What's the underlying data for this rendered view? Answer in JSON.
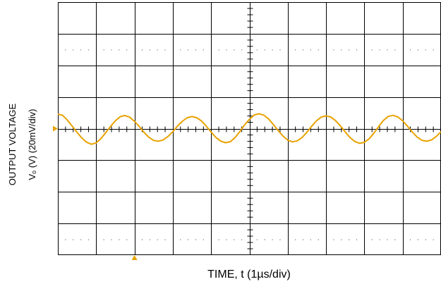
{
  "chart_data": {
    "type": "line",
    "xlabel": "TIME, t (1µs/div)",
    "ylabel_line1": "OUTPUT VOLTAGE",
    "ylabel_line2": "Vₒ (V) (20mV/div)",
    "x_divisions": 10,
    "y_divisions": 8,
    "x_unit_per_div": "1µs",
    "y_unit_per_div": "20mV",
    "xlim": [
      0,
      10
    ],
    "ylim": [
      -80,
      80
    ],
    "grid": true,
    "series": [
      {
        "color": "#E8A200",
        "x": [
          0.0,
          0.125,
          0.25,
          0.375,
          0.5,
          0.625,
          0.75,
          0.875,
          1.0,
          1.125,
          1.25,
          1.375,
          1.5,
          1.625,
          1.75,
          1.875,
          2.0,
          2.125,
          2.25,
          2.375,
          2.5,
          2.625,
          2.75,
          2.875,
          3.0,
          3.125,
          3.25,
          3.375,
          3.5,
          3.625,
          3.75,
          3.875,
          4.0,
          4.125,
          4.25,
          4.375,
          4.5,
          4.625,
          4.75,
          4.875,
          5.0,
          5.125,
          5.25,
          5.375,
          5.5,
          5.625,
          5.75,
          5.875,
          6.0,
          6.125,
          6.25,
          6.375,
          6.5,
          6.625,
          6.75,
          6.875,
          7.0,
          7.125,
          7.25,
          7.375,
          7.5,
          7.625,
          7.75,
          7.875,
          8.0,
          8.125,
          8.25,
          8.375,
          8.5,
          8.625,
          8.75,
          8.875,
          9.0,
          9.125,
          9.25,
          9.375,
          9.5,
          9.625,
          9.75,
          9.875,
          10.0
        ],
        "y": [
          9.2,
          8.4,
          5.3,
          1.5,
          -2.4,
          -5.9,
          -8.6,
          -9.9,
          -9.0,
          -6.3,
          -2.5,
          1.4,
          4.9,
          7.5,
          8.3,
          7.2,
          4.6,
          1.3,
          -2.4,
          -5.5,
          -7.5,
          -8.0,
          -7.1,
          -5.0,
          -1.9,
          1.7,
          4.7,
          6.9,
          7.6,
          6.9,
          4.8,
          1.5,
          -2.2,
          -5.6,
          -7.9,
          -8.9,
          -8.3,
          -5.7,
          -1.9,
          2.4,
          5.9,
          8.6,
          9.4,
          8.5,
          6.1,
          2.6,
          -1.2,
          -4.7,
          -7.3,
          -8.4,
          -7.7,
          -5.6,
          -2.3,
          1.5,
          4.9,
          7.3,
          8.1,
          7.3,
          5.0,
          1.7,
          -2.1,
          -5.6,
          -8.1,
          -9.3,
          -8.7,
          -6.4,
          -2.8,
          1.4,
          5.2,
          7.7,
          8.4,
          7.4,
          4.9,
          1.5,
          -2.1,
          -5.3,
          -7.4,
          -8.0,
          -7.2,
          -5.0,
          -2.0
        ]
      }
    ],
    "markers": {
      "ground_level_y": 0,
      "trigger_time_x": 2.0
    }
  },
  "colors": {
    "trace": "#E8A200",
    "grid": "#000000",
    "marker": "#E8A200"
  }
}
